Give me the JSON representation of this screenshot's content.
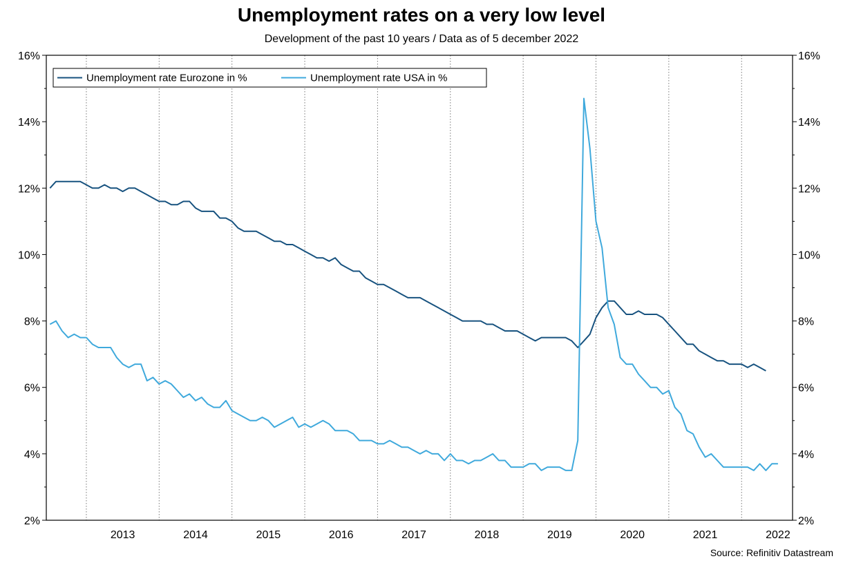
{
  "chart_data": {
    "type": "line",
    "title": "Unemployment rates on a very low level",
    "subtitle": "Development of the past 10 years / Data as of 5 december 2022",
    "source": "Source: Refinitiv Datastream",
    "ylim": [
      2,
      16
    ],
    "yticks": [
      "2%",
      "4%",
      "6%",
      "8%",
      "10%",
      "12%",
      "14%",
      "16%"
    ],
    "ytick_values": [
      2,
      4,
      6,
      8,
      10,
      12,
      14,
      16
    ],
    "xlim": [
      2012.45,
      2022.7
    ],
    "year_labels": [
      "2013",
      "2014",
      "2015",
      "2016",
      "2017",
      "2018",
      "2019",
      "2020",
      "2021",
      "2022"
    ],
    "year_boundaries": [
      2013,
      2014,
      2015,
      2016,
      2017,
      2018,
      2019,
      2020,
      2021,
      2022
    ],
    "legend_position": "top-left",
    "colors": {
      "eurozone": "#17527f",
      "usa": "#3fa9dc",
      "grid": "#777777"
    },
    "series": [
      {
        "name": "Unemployment rate Eurozone in %",
        "key": "eurozone",
        "start": 2012.5,
        "step": 0.0833333,
        "values": [
          12.0,
          12.2,
          12.2,
          12.2,
          12.2,
          12.2,
          12.1,
          12.0,
          12.0,
          12.1,
          12.0,
          12.0,
          11.9,
          12.0,
          12.0,
          11.9,
          11.8,
          11.7,
          11.6,
          11.6,
          11.5,
          11.5,
          11.6,
          11.6,
          11.4,
          11.3,
          11.3,
          11.3,
          11.1,
          11.1,
          11.0,
          10.8,
          10.7,
          10.7,
          10.7,
          10.6,
          10.5,
          10.4,
          10.4,
          10.3,
          10.3,
          10.2,
          10.1,
          10.0,
          9.9,
          9.9,
          9.8,
          9.9,
          9.7,
          9.6,
          9.5,
          9.5,
          9.3,
          9.2,
          9.1,
          9.1,
          9.0,
          8.9,
          8.8,
          8.7,
          8.7,
          8.7,
          8.6,
          8.5,
          8.4,
          8.3,
          8.2,
          8.1,
          8.0,
          8.0,
          8.0,
          8.0,
          7.9,
          7.9,
          7.8,
          7.7,
          7.7,
          7.7,
          7.6,
          7.5,
          7.4,
          7.5,
          7.5,
          7.5,
          7.5,
          7.5,
          7.4,
          7.2,
          7.4,
          7.6,
          8.1,
          8.4,
          8.6,
          8.6,
          8.4,
          8.2,
          8.2,
          8.3,
          8.2,
          8.2,
          8.2,
          8.1,
          7.9,
          7.7,
          7.5,
          7.3,
          7.3,
          7.1,
          7.0,
          6.9,
          6.8,
          6.8,
          6.7,
          6.7,
          6.7,
          6.6,
          6.7,
          6.6,
          6.5
        ]
      },
      {
        "name": "Unemployment rate USA in %",
        "key": "usa",
        "start": 2012.5,
        "step": 0.0833333,
        "values": [
          7.9,
          8.0,
          7.7,
          7.5,
          7.6,
          7.5,
          7.5,
          7.3,
          7.2,
          7.2,
          7.2,
          6.9,
          6.7,
          6.6,
          6.7,
          6.7,
          6.2,
          6.3,
          6.1,
          6.2,
          6.1,
          5.9,
          5.7,
          5.8,
          5.6,
          5.7,
          5.5,
          5.4,
          5.4,
          5.6,
          5.3,
          5.2,
          5.1,
          5.0,
          5.0,
          5.1,
          5.0,
          4.8,
          4.9,
          5.0,
          5.1,
          4.8,
          4.9,
          4.8,
          4.9,
          5.0,
          4.9,
          4.7,
          4.7,
          4.7,
          4.6,
          4.4,
          4.4,
          4.4,
          4.3,
          4.3,
          4.4,
          4.3,
          4.2,
          4.2,
          4.1,
          4.0,
          4.1,
          4.0,
          4.0,
          3.8,
          4.0,
          3.8,
          3.8,
          3.7,
          3.8,
          3.8,
          3.9,
          4.0,
          3.8,
          3.8,
          3.6,
          3.6,
          3.6,
          3.7,
          3.7,
          3.5,
          3.6,
          3.6,
          3.6,
          3.5,
          3.5,
          4.4,
          14.7,
          13.2,
          11.0,
          10.2,
          8.4,
          7.9,
          6.9,
          6.7,
          6.7,
          6.4,
          6.2,
          6.0,
          6.0,
          5.8,
          5.9,
          5.4,
          5.2,
          4.7,
          4.6,
          4.2,
          3.9,
          4.0,
          3.8,
          3.6,
          3.6,
          3.6,
          3.6,
          3.6,
          3.5,
          3.7,
          3.5,
          3.7,
          3.7
        ]
      }
    ]
  }
}
